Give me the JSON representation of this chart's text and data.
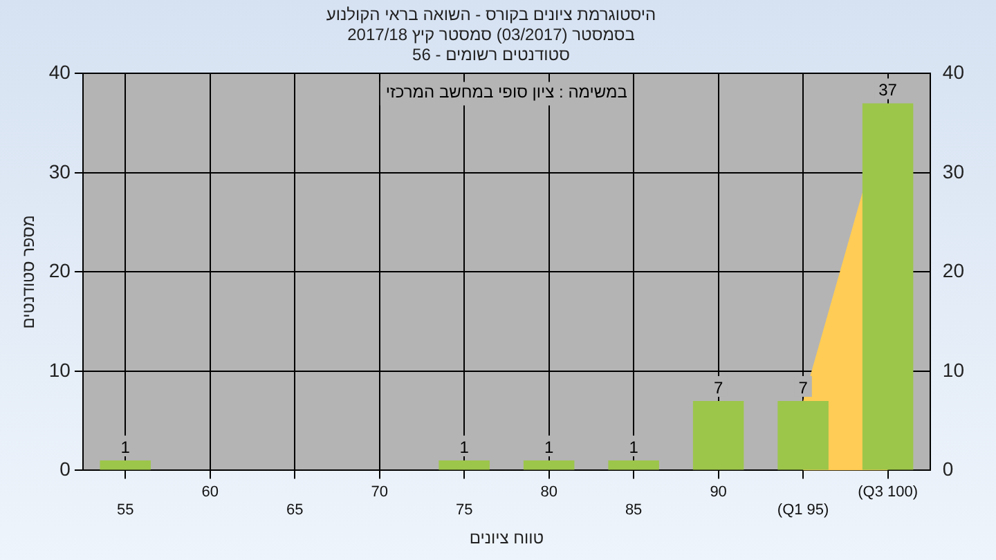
{
  "chart_data": {
    "type": "bar",
    "title": [
      "היסטוגרמת ציונים בקורס - השואה בראי הקולנוע",
      "בסמסטר (03/2017) סמסטר קיץ 2017/18",
      "סטודנטים רשומים - 56"
    ],
    "xlabel": "טווח ציונים",
    "ylabel": "מספר סטודנטים",
    "annotations": [
      "במשימה : ציון סופי במחשב המרכזי"
    ],
    "categories": [
      "55",
      "60",
      "65",
      "70",
      "75",
      "80",
      "85",
      "90",
      "(Q1 95)",
      "(Q3 100)"
    ],
    "series": [
      {
        "color": "#9cc64a",
        "values": [
          1,
          0,
          0,
          0,
          1,
          1,
          1,
          7,
          7,
          37
        ],
        "value_labels": [
          "1",
          null,
          null,
          null,
          "1",
          "1",
          "1",
          "7",
          "7",
          "37"
        ]
      },
      {
        "type": "area",
        "color": "#ffcc55",
        "values": [
          null,
          null,
          null,
          null,
          null,
          null,
          null,
          null,
          7,
          37
        ]
      }
    ],
    "ylim": [
      0,
      40
    ],
    "yticks": [
      0,
      10,
      20,
      30,
      40
    ],
    "y2lim": [
      0,
      40
    ],
    "y2ticks": [
      0,
      10,
      20,
      30,
      40
    ],
    "grid": true,
    "legend": false
  }
}
